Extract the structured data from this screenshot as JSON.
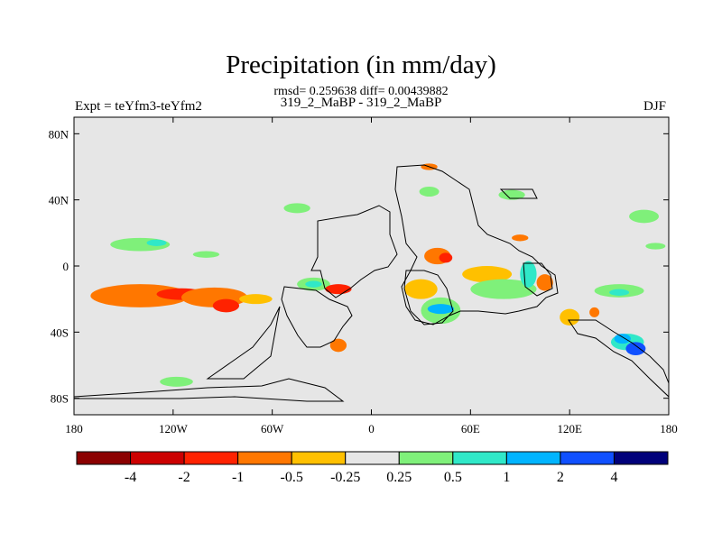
{
  "header": {
    "title": "Precipitation (in mm/day)",
    "stats": "rmsd= 0.259638 diff= 0.00439882",
    "expt": "Expt = teYfm3-teYfm2",
    "run": "319_2_MaBP - 319_2_MaBP",
    "season": "DJF"
  },
  "chart_data": {
    "type": "heatmap",
    "title": "Precipitation (in mm/day)",
    "x_axis": {
      "range": [
        -180,
        180
      ],
      "ticks": [
        -180,
        -120,
        -60,
        0,
        60,
        120,
        180
      ],
      "tick_labels": [
        "180",
        "120W",
        "60W",
        "0",
        "60E",
        "120E",
        "180"
      ]
    },
    "y_axis": {
      "range": [
        -90,
        90
      ],
      "ticks": [
        80,
        40,
        0,
        -40,
        -80
      ],
      "tick_labels": [
        "80N",
        "40N",
        "0",
        "40S",
        "80S"
      ]
    },
    "background_color": "#e6e6e6",
    "colorbar": {
      "levels": [
        "-4",
        "-2",
        "-1",
        "-0.5",
        "-0.25",
        "0.25",
        "0.5",
        "1",
        "2",
        "4"
      ],
      "colors": [
        "#8b0000",
        "#cc0000",
        "#ff2200",
        "#ff7700",
        "#ffc000",
        "#e6e6e6",
        "#7ff07a",
        "#30e8c8",
        "#00b4ff",
        "#1050ff",
        "#00007a"
      ]
    },
    "regions": [
      {
        "x": -140,
        "y": -18,
        "rx": 30,
        "ry": 7,
        "color": "#ff7700"
      },
      {
        "x": -115,
        "y": -17,
        "rx": 15,
        "ry": 3.5,
        "color": "#ff2200"
      },
      {
        "x": -95,
        "y": -19,
        "rx": 20,
        "ry": 6,
        "color": "#ff7700"
      },
      {
        "x": -88,
        "y": -24,
        "rx": 8,
        "ry": 4,
        "color": "#ff2200"
      },
      {
        "x": -70,
        "y": -20,
        "rx": 10,
        "ry": 3,
        "color": "#ffc000"
      },
      {
        "x": -140,
        "y": 13,
        "rx": 18,
        "ry": 4,
        "color": "#7ff07a"
      },
      {
        "x": -130,
        "y": 14,
        "rx": 6,
        "ry": 2,
        "color": "#30e8c8"
      },
      {
        "x": -100,
        "y": 7,
        "rx": 8,
        "ry": 2,
        "color": "#7ff07a"
      },
      {
        "x": -35,
        "y": -11,
        "rx": 10,
        "ry": 4,
        "color": "#7ff07a"
      },
      {
        "x": -35,
        "y": -11,
        "rx": 5,
        "ry": 2,
        "color": "#30e8c8"
      },
      {
        "x": -20,
        "y": -14,
        "rx": 8,
        "ry": 3,
        "color": "#ff2200"
      },
      {
        "x": 30,
        "y": -14,
        "rx": 10,
        "ry": 6,
        "color": "#ffc000"
      },
      {
        "x": 42,
        "y": -27,
        "rx": 12,
        "ry": 8,
        "color": "#7ff07a"
      },
      {
        "x": 42,
        "y": -26,
        "rx": 8,
        "ry": 3,
        "color": "#00b4ff"
      },
      {
        "x": 40,
        "y": 6,
        "rx": 8,
        "ry": 5,
        "color": "#ff7700"
      },
      {
        "x": 45,
        "y": 5,
        "rx": 4,
        "ry": 3,
        "color": "#ff2200"
      },
      {
        "x": 70,
        "y": -5,
        "rx": 15,
        "ry": 5,
        "color": "#ffc000"
      },
      {
        "x": 80,
        "y": -14,
        "rx": 20,
        "ry": 6,
        "color": "#7ff07a"
      },
      {
        "x": 95,
        "y": -5,
        "rx": 5,
        "ry": 8,
        "color": "#30e8c8"
      },
      {
        "x": 105,
        "y": -10,
        "rx": 5,
        "ry": 5,
        "color": "#ff7700"
      },
      {
        "x": 120,
        "y": -31,
        "rx": 6,
        "ry": 5,
        "color": "#ffc000"
      },
      {
        "x": 155,
        "y": -46,
        "rx": 10,
        "ry": 5,
        "color": "#30e8c8"
      },
      {
        "x": 160,
        "y": -50,
        "rx": 6,
        "ry": 4,
        "color": "#1050ff"
      },
      {
        "x": 152,
        "y": -44,
        "rx": 5,
        "ry": 3,
        "color": "#00b4ff"
      },
      {
        "x": 150,
        "y": -15,
        "rx": 15,
        "ry": 4,
        "color": "#7ff07a"
      },
      {
        "x": 150,
        "y": -16,
        "rx": 6,
        "ry": 2,
        "color": "#30e8c8"
      },
      {
        "x": 165,
        "y": 30,
        "rx": 9,
        "ry": 4,
        "color": "#7ff07a"
      },
      {
        "x": 172,
        "y": 12,
        "rx": 6,
        "ry": 2,
        "color": "#7ff07a"
      },
      {
        "x": 35,
        "y": 60,
        "rx": 5,
        "ry": 2,
        "color": "#ff7700"
      },
      {
        "x": 35,
        "y": 45,
        "rx": 6,
        "ry": 3,
        "color": "#7ff07a"
      },
      {
        "x": 85,
        "y": 43,
        "rx": 8,
        "ry": 3,
        "color": "#7ff07a"
      },
      {
        "x": -45,
        "y": 35,
        "rx": 8,
        "ry": 3,
        "color": "#7ff07a"
      },
      {
        "x": -118,
        "y": -70,
        "rx": 10,
        "ry": 3,
        "color": "#7ff07a"
      },
      {
        "x": -20,
        "y": -48,
        "rx": 5,
        "ry": 4,
        "color": "#ff7700"
      },
      {
        "x": 135,
        "y": -28,
        "rx": 3,
        "ry": 3,
        "color": "#ff7700"
      },
      {
        "x": 90,
        "y": 17,
        "rx": 5,
        "ry": 2,
        "color": "#ff7700"
      }
    ]
  }
}
